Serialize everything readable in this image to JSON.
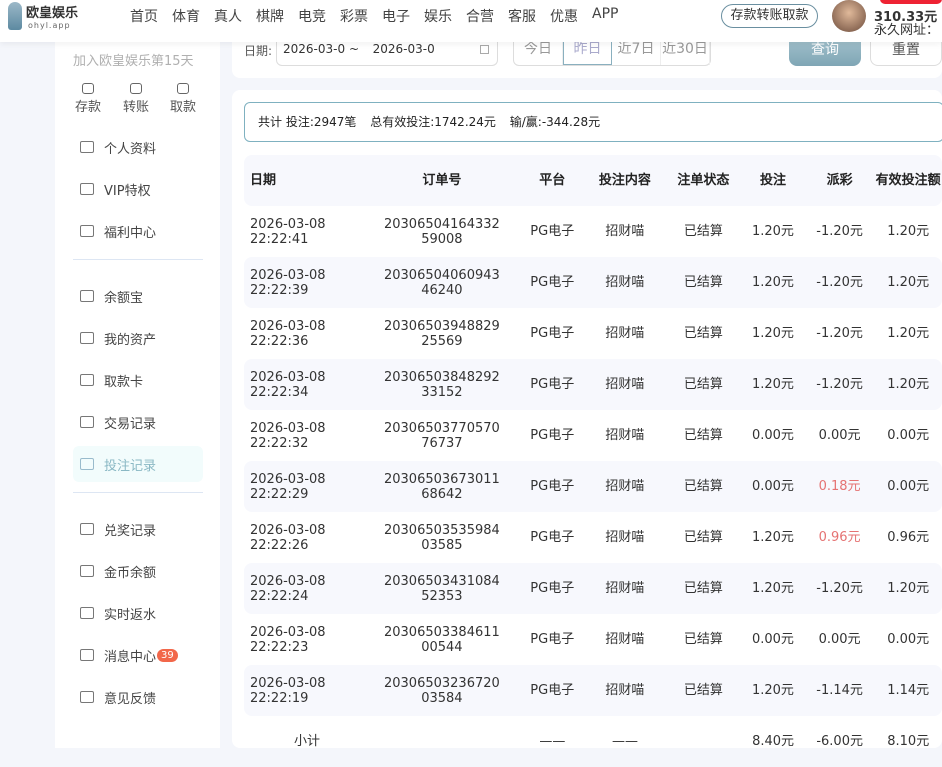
{
  "header": {
    "logo_cn": "欧皇娱乐",
    "logo_en": "ohyl.app",
    "nav": [
      "首页",
      "体育",
      "真人",
      "棋牌",
      "电竞",
      "彩票",
      "电子",
      "娱乐",
      "合营",
      "客服",
      "优惠",
      "APP"
    ],
    "deposit_button": "存款转账取款",
    "balance": "310.33元",
    "permanent_url": "永久网址："
  },
  "sidebar": {
    "join_text": "加入欧皇娱乐第15天",
    "quick": [
      "存款",
      "转账",
      "取款"
    ],
    "group1": [
      {
        "label": "个人资料",
        "icon": "id-card-icon"
      },
      {
        "label": "VIP特权",
        "icon": "crown-icon"
      },
      {
        "label": "福利中心",
        "icon": "gift-icon"
      }
    ],
    "group2": [
      {
        "label": "余额宝",
        "icon": "wallet-icon"
      },
      {
        "label": "我的资产",
        "icon": "asset-icon"
      },
      {
        "label": "取款卡",
        "icon": "card-icon"
      },
      {
        "label": "交易记录",
        "icon": "list-icon"
      },
      {
        "label": "投注记录",
        "icon": "doc-icon",
        "active": true
      }
    ],
    "group3": [
      {
        "label": "兑奖记录",
        "icon": "clipboard-icon"
      },
      {
        "label": "金币余额",
        "icon": "coin-icon"
      },
      {
        "label": "实时返水",
        "icon": "yen-icon"
      },
      {
        "label": "消息中心",
        "icon": "mail-icon",
        "badge": "39"
      },
      {
        "label": "意见反馈",
        "icon": "feedback-icon"
      }
    ]
  },
  "filter": {
    "date_label": "日期:",
    "date_start": "2026-03-0",
    "date_sep": "~",
    "date_end": "2026-03-0",
    "quick": [
      "今日",
      "昨日",
      "近7日",
      "近30日"
    ],
    "selected": "昨日",
    "query": "查询",
    "reset": "重置"
  },
  "summary": {
    "total": "共计 投注:2947笔",
    "valid": "总有效投注:1742.24元",
    "winloss": "输/赢:-344.28元"
  },
  "table": {
    "headers": [
      "日期",
      "订单号",
      "平台",
      "投注内容",
      "注单状态",
      "投注",
      "派彩",
      "有效投注额"
    ],
    "rows": [
      [
        "2026-03-08",
        "22:22:41",
        "20306504164332",
        "59008",
        "PG电子",
        "招财喵",
        "已结算",
        "1.20元",
        "-1.20元",
        "1.20元"
      ],
      [
        "2026-03-08",
        "22:22:39",
        "20306504060943",
        "46240",
        "PG电子",
        "招财喵",
        "已结算",
        "1.20元",
        "-1.20元",
        "1.20元"
      ],
      [
        "2026-03-08",
        "22:22:36",
        "20306503948829",
        "25569",
        "PG电子",
        "招财喵",
        "已结算",
        "1.20元",
        "-1.20元",
        "1.20元"
      ],
      [
        "2026-03-08",
        "22:22:34",
        "20306503848292",
        "33152",
        "PG电子",
        "招财喵",
        "已结算",
        "1.20元",
        "-1.20元",
        "1.20元"
      ],
      [
        "2026-03-08",
        "22:22:32",
        "20306503770570",
        "76737",
        "PG电子",
        "招财喵",
        "已结算",
        "0.00元",
        "0.00元",
        "0.00元"
      ],
      [
        "2026-03-08",
        "22:22:29",
        "20306503673011",
        "68642",
        "PG电子",
        "招财喵",
        "已结算",
        "0.00元",
        "0.18元",
        "0.00元"
      ],
      [
        "2026-03-08",
        "22:22:26",
        "20306503535984",
        "03585",
        "PG电子",
        "招财喵",
        "已结算",
        "1.20元",
        "0.96元",
        "0.96元"
      ],
      [
        "2026-03-08",
        "22:22:24",
        "20306503431084",
        "52353",
        "PG电子",
        "招财喵",
        "已结算",
        "1.20元",
        "-1.20元",
        "1.20元"
      ],
      [
        "2026-03-08",
        "22:22:23",
        "20306503384611",
        "00544",
        "PG电子",
        "招财喵",
        "已结算",
        "0.00元",
        "0.00元",
        "0.00元"
      ],
      [
        "2026-03-08",
        "22:22:19",
        "20306503236720",
        "03584",
        "PG电子",
        "招财喵",
        "已结算",
        "1.20元",
        "-1.14元",
        "1.14元"
      ]
    ],
    "subtotal": {
      "label": "小计",
      "platform": "——",
      "content": "——",
      "bet": "8.40元",
      "payout": "-6.00元",
      "valid": "8.10元"
    }
  },
  "colors": {
    "accent": "#7fa6b5",
    "positive_payout": "#e57373",
    "badge": "#f2674a"
  }
}
